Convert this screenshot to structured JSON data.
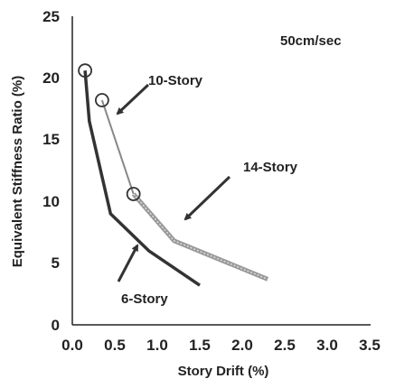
{
  "chart_data": {
    "type": "line",
    "title": "",
    "xlabel": "Story Drift (%)",
    "ylabel": "Equivalent Stiffness Ratio (%)",
    "xlim": [
      0,
      3.5
    ],
    "ylim": [
      0,
      25
    ],
    "xticks": [
      "0.0",
      "0.5",
      "1.0",
      "1.5",
      "2.0",
      "2.5",
      "3.0",
      "3.5"
    ],
    "yticks": [
      "0",
      "5",
      "10",
      "15",
      "20",
      "25"
    ],
    "grid": false,
    "legend": "none",
    "annotation": "50cm/sec",
    "series": [
      {
        "name": "6-Story",
        "color": "#333333",
        "style": "thick-solid",
        "x": [
          0.15,
          0.2,
          0.45,
          0.9,
          1.5
        ],
        "y": [
          20.6,
          16.5,
          9.0,
          6.0,
          3.2
        ]
      },
      {
        "name": "10-Story",
        "color": "#888888",
        "style": "thin",
        "x": [
          0.35,
          0.72
        ],
        "y": [
          18.2,
          10.6
        ]
      },
      {
        "name": "14-Story",
        "color": "#999999",
        "style": "hatched",
        "x": [
          0.72,
          1.2,
          2.3
        ],
        "y": [
          10.6,
          6.8,
          3.7
        ]
      }
    ],
    "markers": [
      {
        "x": 0.15,
        "y": 20.6
      },
      {
        "x": 0.35,
        "y": 18.2
      },
      {
        "x": 0.72,
        "y": 10.6
      }
    ]
  }
}
